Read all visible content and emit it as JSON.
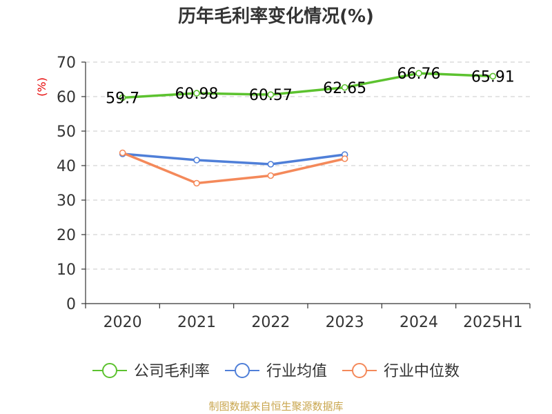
{
  "chart_data": {
    "type": "line",
    "title": "历年毛利率变化情况(%)",
    "ylabel": "(%)",
    "xlabel": "",
    "categories": [
      "2020",
      "2021",
      "2022",
      "2023",
      "2024",
      "2025H1"
    ],
    "ylim": [
      0,
      70
    ],
    "yticks": [
      0,
      10,
      20,
      30,
      40,
      50,
      60,
      70
    ],
    "grid": "horizontal dashed",
    "legend_position": "bottom",
    "series": [
      {
        "name": "公司毛利率",
        "color": "#5cc22f",
        "values": [
          59.7,
          60.98,
          60.57,
          62.65,
          66.76,
          65.91
        ],
        "labels": [
          "59.7",
          "60.98",
          "60.57",
          "62.65",
          "66.76",
          "65.91"
        ]
      },
      {
        "name": "行业均值",
        "color": "#4f7fd8",
        "values": [
          43.4,
          41.6,
          40.4,
          43.2,
          null,
          null
        ]
      },
      {
        "name": "行业中位数",
        "color": "#f4895a",
        "values": [
          43.7,
          34.9,
          37.1,
          42.0,
          null,
          null
        ]
      }
    ]
  },
  "source": "制图数据来自恒生聚源数据库"
}
